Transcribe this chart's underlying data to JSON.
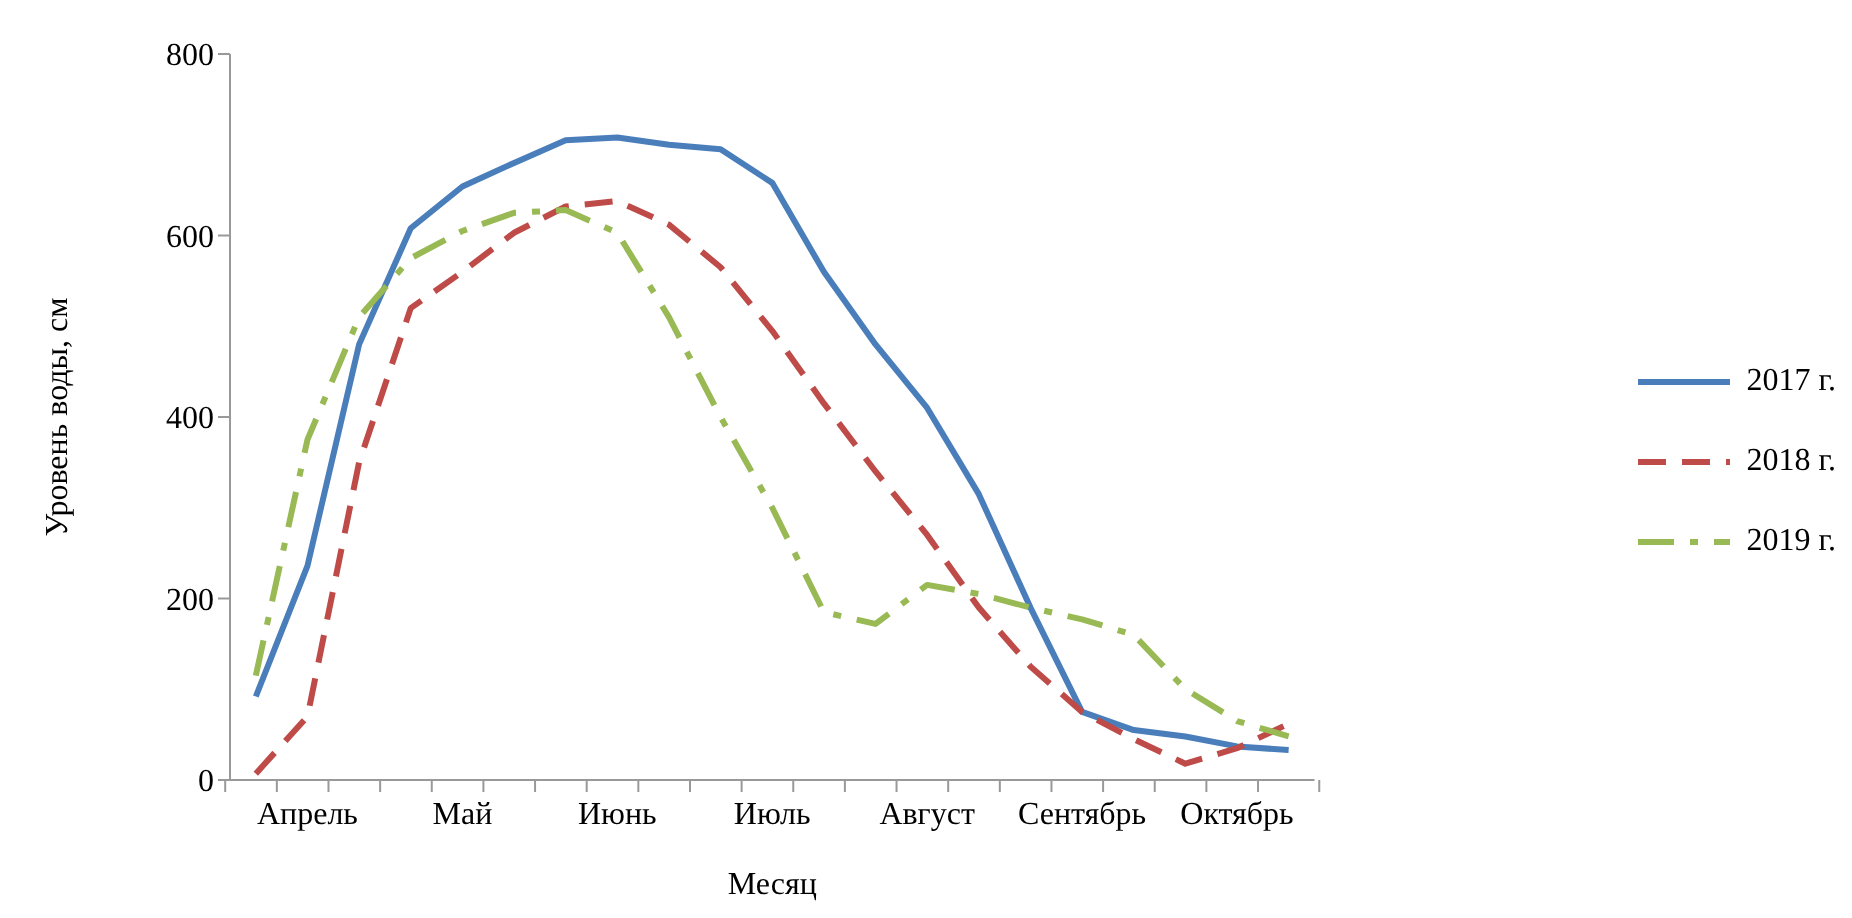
{
  "chart_data": {
    "type": "line",
    "xlabel": "Месяц",
    "ylabel": "Уровень воды, см",
    "categories": [
      null,
      "Апрель",
      null,
      null,
      "Май",
      null,
      null,
      "Июнь",
      null,
      null,
      "Июль",
      null,
      null,
      "Август",
      null,
      null,
      "Сентябрь",
      null,
      null,
      "Октябрь",
      null
    ],
    "series": [
      {
        "name": "2017 г.",
        "color": "#4a7ebb",
        "line_style": "solid",
        "values": [
          92,
          236,
          480,
          608,
          654,
          680,
          705,
          708,
          700,
          695,
          658,
          560,
          480,
          410,
          315,
          190,
          75,
          55,
          48,
          37,
          33
        ]
      },
      {
        "name": "2018 г.",
        "color": "#be4b48",
        "line_style": "dashed",
        "values": [
          7,
          70,
          350,
          520,
          560,
          603,
          632,
          638,
          612,
          565,
          495,
          415,
          340,
          270,
          190,
          125,
          75,
          45,
          18,
          35,
          62
        ]
      },
      {
        "name": "2019 г.",
        "color": "#98b954",
        "line_style": "dashdot",
        "values": [
          115,
          375,
          510,
          575,
          605,
          625,
          628,
          603,
          510,
          400,
          300,
          185,
          172,
          215,
          205,
          190,
          177,
          160,
          100,
          65,
          48
        ]
      }
    ],
    "ylim": [
      0,
      800
    ],
    "yticks": [
      0,
      200,
      400,
      600,
      800
    ],
    "legend": "right",
    "marker": "none"
  }
}
